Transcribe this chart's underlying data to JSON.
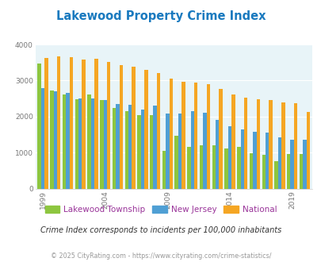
{
  "title": "Lakewood Property Crime Index",
  "years": [
    1999,
    2000,
    2001,
    2002,
    2003,
    2004,
    2005,
    2006,
    2007,
    2008,
    2009,
    2010,
    2011,
    2012,
    2013,
    2014,
    2015,
    2016,
    2017,
    2018,
    2019,
    2020
  ],
  "lakewood": [
    3470,
    2720,
    2620,
    2480,
    2620,
    2460,
    2240,
    2150,
    2040,
    2030,
    1040,
    1460,
    1160,
    1200,
    1200,
    1110,
    1150,
    980,
    940,
    770,
    960,
    960
  ],
  "nj": [
    2780,
    2700,
    2650,
    2510,
    2510,
    2460,
    2340,
    2320,
    2200,
    2310,
    2090,
    2090,
    2150,
    2100,
    1910,
    1730,
    1640,
    1570,
    1560,
    1420,
    1360,
    1360
  ],
  "national": [
    3620,
    3670,
    3640,
    3590,
    3610,
    3520,
    3430,
    3380,
    3290,
    3200,
    3050,
    2960,
    2940,
    2890,
    2760,
    2620,
    2530,
    2490,
    2470,
    2400,
    2370,
    2120
  ],
  "lakewood_color": "#8dc63f",
  "nj_color": "#4f9fd4",
  "national_color": "#f5a623",
  "bg_color": "#e8f4f8",
  "title_color": "#1a7abf",
  "legend_text_color": "#993399",
  "subtitle_color": "#333333",
  "footer_color": "#999999",
  "legend_lakewood": "Lakewood Township",
  "legend_nj": "New Jersey",
  "legend_national": "National",
  "subtitle": "Crime Index corresponds to incidents per 100,000 inhabitants",
  "footer": "© 2025 CityRating.com - https://www.cityrating.com/crime-statistics/",
  "ylim": [
    0,
    4000
  ],
  "yticks": [
    0,
    1000,
    2000,
    3000,
    4000
  ],
  "xtick_years": [
    1999,
    2004,
    2009,
    2014,
    2019
  ],
  "bar_width": 0.28
}
